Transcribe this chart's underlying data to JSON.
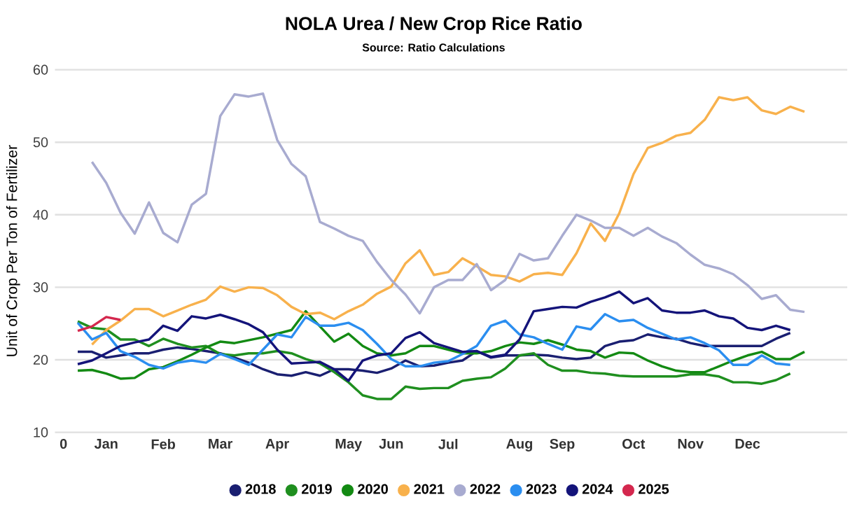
{
  "chart_data": {
    "type": "line",
    "title": "NOLA Urea / New Crop Rice Ratio",
    "subtitle": "Source: Ratio Calculations",
    "ylabel": "Unit of Crop Per Ton of Fertilizer",
    "categories": [
      "0",
      null,
      null,
      "Jan",
      null,
      null,
      null,
      "Feb",
      null,
      null,
      null,
      "Mar",
      null,
      null,
      null,
      "Apr",
      null,
      null,
      null,
      null,
      "May",
      null,
      null,
      "Jun",
      null,
      null,
      null,
      "Jul",
      null,
      null,
      null,
      null,
      "Aug",
      null,
      null,
      "Sep",
      null,
      null,
      null,
      null,
      "Oct",
      null,
      null,
      null,
      "Nov",
      null,
      null,
      null,
      "Dec",
      null,
      null,
      null,
      null
    ],
    "ylim": [
      10,
      60
    ],
    "yticks": [
      10,
      20,
      30,
      40,
      50,
      60
    ],
    "grid": "y",
    "legend": "bottom",
    "series": [
      {
        "name": "2018",
        "color": "#1a1f71",
        "values": [
          null,
          21.1,
          21.1,
          20.3,
          20.6,
          20.9,
          20.9,
          21.4,
          21.7,
          21.5,
          21.2,
          20.9,
          20.3,
          19.6,
          18.7,
          18.0,
          17.8,
          18.3,
          17.8,
          18.7,
          18.7,
          18.5,
          18.2,
          18.8,
          19.9,
          19.1,
          19.2,
          19.6,
          19.9,
          21.2,
          20.3,
          20.6,
          20.6,
          20.7,
          20.6,
          20.3,
          20.1,
          20.3,
          21.9,
          22.5,
          22.7,
          23.5,
          23.1,
          22.9,
          22.3,
          21.9,
          21.9,
          21.9,
          21.9,
          21.9,
          22.9,
          23.7,
          null
        ]
      },
      {
        "name": "2019",
        "color": "#1f8f1f",
        "values": [
          null,
          25.3,
          24.4,
          24.2,
          22.8,
          22.8,
          21.9,
          22.9,
          22.2,
          21.7,
          21.9,
          20.8,
          20.6,
          20.9,
          20.9,
          21.2,
          20.9,
          20.1,
          19.5,
          18.3,
          16.9,
          15.1,
          14.6,
          14.6,
          16.3,
          16.0,
          16.1,
          16.1,
          17.1,
          17.4,
          17.6,
          18.8,
          20.6,
          20.9,
          19.3,
          18.5,
          18.5,
          18.2,
          18.1,
          17.8,
          17.7,
          17.7,
          17.7,
          17.7,
          18.0,
          18.0,
          17.7,
          16.9,
          16.9,
          16.7,
          17.2,
          18.1,
          null
        ]
      },
      {
        "name": "2020",
        "color": "#138a13",
        "values": [
          null,
          18.5,
          18.6,
          18.1,
          17.4,
          17.5,
          18.7,
          19.0,
          19.8,
          20.7,
          21.7,
          22.5,
          22.3,
          22.7,
          23.1,
          23.6,
          24.1,
          26.7,
          24.6,
          22.5,
          23.6,
          21.9,
          20.9,
          20.6,
          20.9,
          21.9,
          21.9,
          21.4,
          20.9,
          20.9,
          21.2,
          21.9,
          22.4,
          22.2,
          22.7,
          22.1,
          21.4,
          21.2,
          20.3,
          21.0,
          20.9,
          19.9,
          19.1,
          18.5,
          18.3,
          18.3,
          19.1,
          19.9,
          20.6,
          21.1,
          20.1,
          20.1,
          21.1
        ]
      },
      {
        "name": "2021",
        "color": "#f8b14c",
        "values": [
          null,
          null,
          22.1,
          24.1,
          25.4,
          27.0,
          27.0,
          26.0,
          26.8,
          27.6,
          28.3,
          30.1,
          29.4,
          30.0,
          29.9,
          28.9,
          27.3,
          26.3,
          26.5,
          25.6,
          26.7,
          27.6,
          29.1,
          30.1,
          33.3,
          35.1,
          31.7,
          32.1,
          34.0,
          32.9,
          31.7,
          31.5,
          30.8,
          31.8,
          32.0,
          31.7,
          34.7,
          38.8,
          36.4,
          40.2,
          45.6,
          49.2,
          49.9,
          50.9,
          51.3,
          53.1,
          56.2,
          55.8,
          56.2,
          54.4,
          53.9,
          54.9,
          54.2
        ]
      },
      {
        "name": "2022",
        "color": "#a8abd0",
        "values": [
          null,
          null,
          47.3,
          44.4,
          40.3,
          37.4,
          41.7,
          37.5,
          36.2,
          41.4,
          42.9,
          53.6,
          56.6,
          56.3,
          56.7,
          50.3,
          47.0,
          45.3,
          39.0,
          38.1,
          37.1,
          36.4,
          33.5,
          31.0,
          29.0,
          26.4,
          30.0,
          31.0,
          31.0,
          33.2,
          29.6,
          31.0,
          34.6,
          33.7,
          34.0,
          37.1,
          40.0,
          39.2,
          38.2,
          38.2,
          37.1,
          38.2,
          37.0,
          36.1,
          34.5,
          33.1,
          32.6,
          31.8,
          30.3,
          28.4,
          28.9,
          26.9,
          26.6
        ]
      },
      {
        "name": "2023",
        "color": "#2b8ef0",
        "values": [
          null,
          25.1,
          22.8,
          23.7,
          21.2,
          20.4,
          19.3,
          18.8,
          19.6,
          19.9,
          19.6,
          20.8,
          20.1,
          19.3,
          21.4,
          23.5,
          23.1,
          25.9,
          24.7,
          24.7,
          25.1,
          24.1,
          22.2,
          20.1,
          19.1,
          19.1,
          19.6,
          19.8,
          20.8,
          21.9,
          24.7,
          25.4,
          23.5,
          23.1,
          22.2,
          21.4,
          24.6,
          24.2,
          26.3,
          25.3,
          25.5,
          24.4,
          23.6,
          22.8,
          23.1,
          22.3,
          21.3,
          19.3,
          19.3,
          20.6,
          19.5,
          19.3,
          null
        ]
      },
      {
        "name": "2024",
        "color": "#14147a",
        "values": [
          null,
          19.4,
          19.9,
          20.9,
          21.9,
          22.4,
          22.8,
          24.7,
          24.0,
          26.0,
          25.7,
          26.2,
          25.6,
          24.9,
          23.8,
          21.4,
          19.5,
          19.6,
          19.7,
          18.7,
          17.1,
          19.9,
          20.6,
          20.9,
          23.0,
          23.8,
          22.3,
          21.7,
          21.1,
          21.2,
          20.4,
          20.7,
          22.8,
          26.7,
          27.0,
          27.3,
          27.2,
          28.0,
          28.6,
          29.4,
          27.8,
          28.5,
          26.8,
          26.5,
          26.5,
          26.8,
          26.0,
          25.7,
          24.4,
          24.1,
          24.7,
          24.1,
          null
        ]
      },
      {
        "name": "2025",
        "color": "#d4284e",
        "values": [
          null,
          24.0,
          24.6,
          25.9,
          25.5,
          null,
          null,
          null,
          null,
          null,
          null,
          null,
          null,
          null,
          null,
          null,
          null,
          null,
          null,
          null,
          null,
          null,
          null,
          null,
          null,
          null,
          null,
          null,
          null,
          null,
          null,
          null,
          null,
          null,
          null,
          null,
          null,
          null,
          null,
          null,
          null,
          null,
          null,
          null,
          null,
          null,
          null,
          null,
          null,
          null,
          null,
          null,
          null
        ]
      }
    ]
  }
}
